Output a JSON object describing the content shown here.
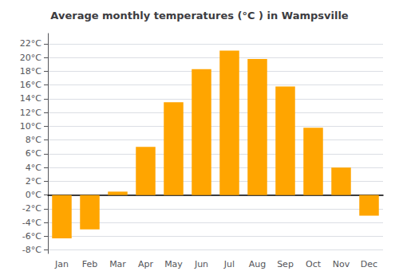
{
  "chart_data": {
    "type": "bar",
    "title": "Average monthly temperatures (°C ) in Wampsville",
    "categories": [
      "Jan",
      "Feb",
      "Mar",
      "Apr",
      "May",
      "Jun",
      "Jul",
      "Aug",
      "Sep",
      "Oct",
      "Nov",
      "Dec"
    ],
    "values": [
      -6.3,
      -5.0,
      0.5,
      7.0,
      13.5,
      18.3,
      21.0,
      19.8,
      15.8,
      9.8,
      4.0,
      -3.0
    ],
    "color": "#FFA500",
    "ylim": [
      -8.5,
      23.5
    ],
    "yticks": [
      {
        "value": -8,
        "label": "-8°C"
      },
      {
        "value": -6,
        "label": "-6°C"
      },
      {
        "value": -4,
        "label": "-4°C"
      },
      {
        "value": -2,
        "label": "-2°C"
      },
      {
        "value": 0,
        "label": "0°C"
      },
      {
        "value": 2,
        "label": "2°C"
      },
      {
        "value": 4,
        "label": "4°C"
      },
      {
        "value": 6,
        "label": "6°C"
      },
      {
        "value": 8,
        "label": "8°C"
      },
      {
        "value": 10,
        "label": "10°C"
      },
      {
        "value": 12,
        "label": "12°C"
      },
      {
        "value": 14,
        "label": "14°C"
      },
      {
        "value": 16,
        "label": "16°C"
      },
      {
        "value": 18,
        "label": "18°C"
      },
      {
        "value": 20,
        "label": "20°C"
      },
      {
        "value": 22,
        "label": "22°C"
      }
    ],
    "grid": true
  }
}
